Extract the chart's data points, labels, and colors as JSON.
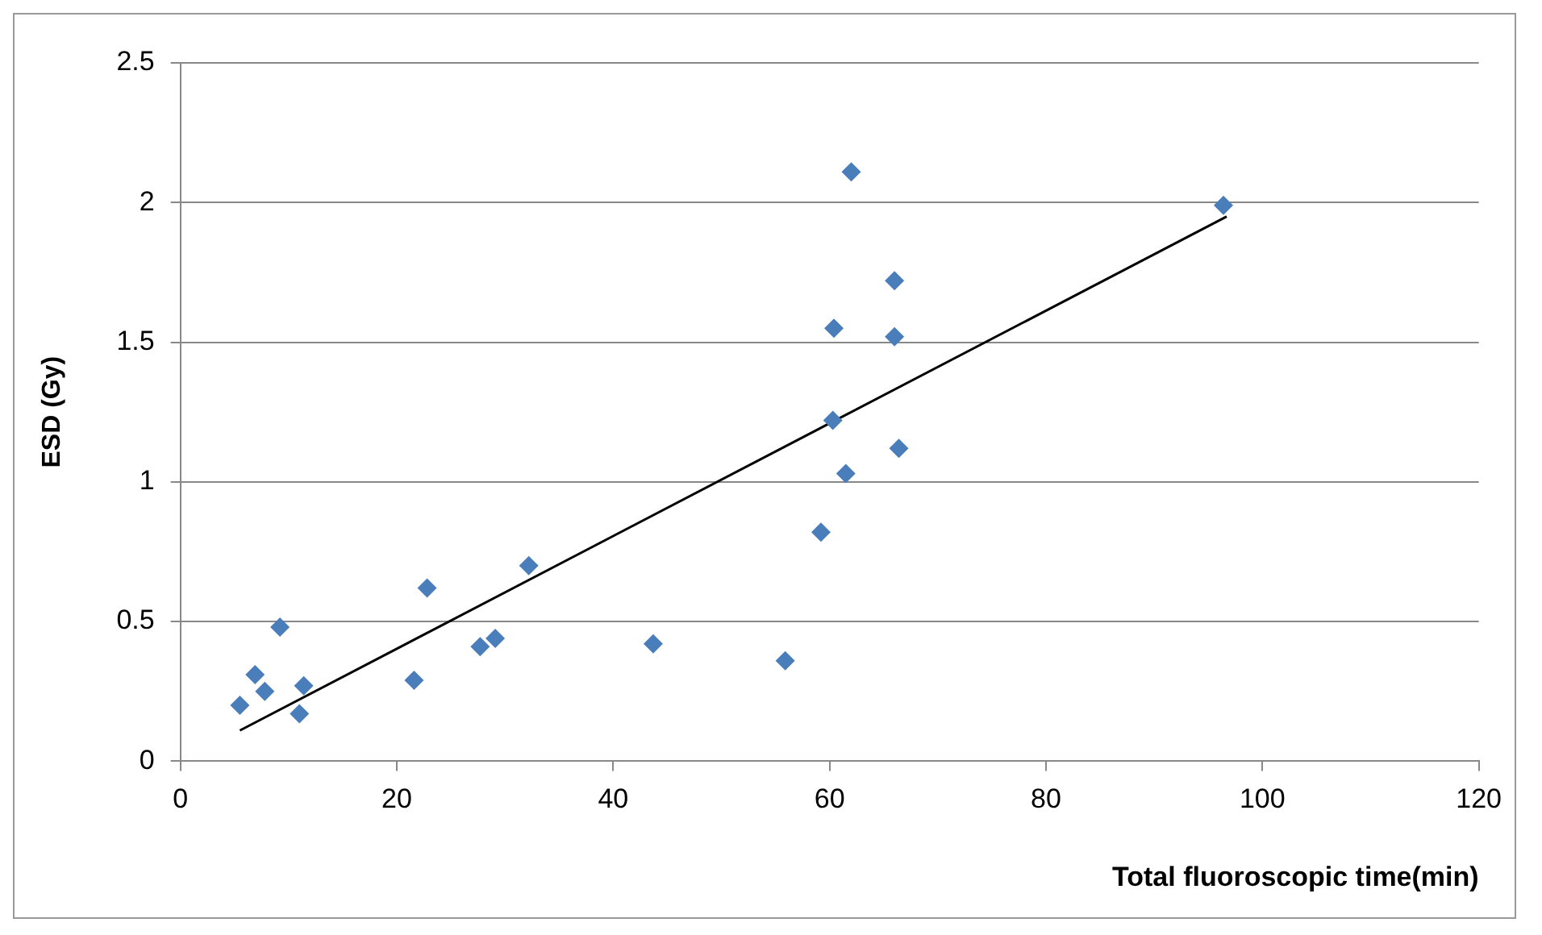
{
  "chart_data": {
    "type": "scatter",
    "xlabel": "Total fluoroscopic time(min)",
    "ylabel": "ESD (Gy)",
    "xlim": [
      0,
      120
    ],
    "xticks": [
      0,
      20,
      40,
      60,
      80,
      100,
      120
    ],
    "ylim": [
      0,
      2.5
    ],
    "yticks": [
      0,
      0.5,
      1,
      1.5,
      2,
      2.5
    ],
    "grid": "y",
    "legend": false,
    "marker": "diamond",
    "series": [
      {
        "color": "#4a7ebb",
        "x": [
          5.5,
          6.9,
          7.8,
          9.2,
          11.0,
          11.4,
          21.6,
          22.8,
          27.7,
          29.1,
          32.2,
          43.7,
          55.9,
          59.2,
          60.3,
          60.4,
          61.5,
          62.0,
          66.0,
          66.0,
          66.4,
          96.4
        ],
        "values": [
          0.2,
          0.31,
          0.25,
          0.48,
          0.17,
          0.27,
          0.29,
          0.62,
          0.41,
          0.44,
          0.7,
          0.42,
          0.36,
          0.82,
          1.22,
          1.55,
          1.03,
          2.11,
          1.72,
          1.52,
          1.12,
          1.99
        ]
      },
      {
        "type": "line",
        "marker": "none",
        "color": "#000000",
        "x": [
          5.5,
          96.7
        ],
        "values": [
          0.11,
          1.95
        ]
      }
    ]
  }
}
